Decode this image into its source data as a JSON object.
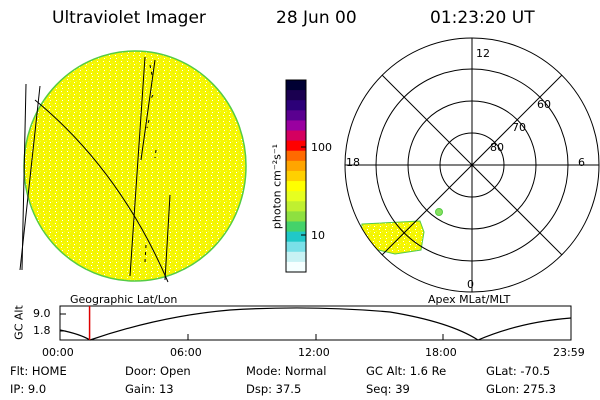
{
  "header": {
    "instrument": "Ultraviolet Imager",
    "date": "28 Jun 00",
    "time": "01:23:20 UT"
  },
  "colorbar": {
    "unit_label": "photon cm⁻²s⁻¹",
    "ticks": [
      "100",
      "10"
    ],
    "colors": [
      "#000033",
      "#1a0050",
      "#2c0078",
      "#5a0090",
      "#9a00a0",
      "#d40060",
      "#ff0000",
      "#ff6a00",
      "#ffa500",
      "#ffd000",
      "#ffff00",
      "#e6ff20",
      "#c0f030",
      "#8ee040",
      "#44d26a",
      "#20c8c8",
      "#7ae0e8",
      "#c8f2f4",
      "#f5ffff"
    ]
  },
  "polar_plot": {
    "labels": {
      "noon": "12",
      "midnight": "0",
      "dawn": "6",
      "dusk": "18"
    },
    "latitude_labels": [
      "60",
      "70",
      "80"
    ]
  },
  "map_labels": {
    "left": "Geographic Lat/Lon",
    "right": "Apex MLat/MLT"
  },
  "altitude_plot": {
    "ylabel": "GC Alt",
    "yticks": [
      "9.0",
      "1.8"
    ],
    "xticks": [
      "00:00",
      "06:00",
      "12:00",
      "18:00",
      "23:59"
    ],
    "current_time_marker_hours": 1.389
  },
  "status": {
    "flt": "Flt: HOME",
    "ip": "IP:  9.0",
    "door": "Door: Open",
    "gain": "Gain: 13",
    "mode": "Mode: Normal",
    "dsp": "Dsp:    37.5",
    "gc_alt": "GC Alt: 1.6 Re",
    "seq": "Seq: 39",
    "glat": "GLat: -70.5",
    "glon": "GLon: 275.3"
  }
}
